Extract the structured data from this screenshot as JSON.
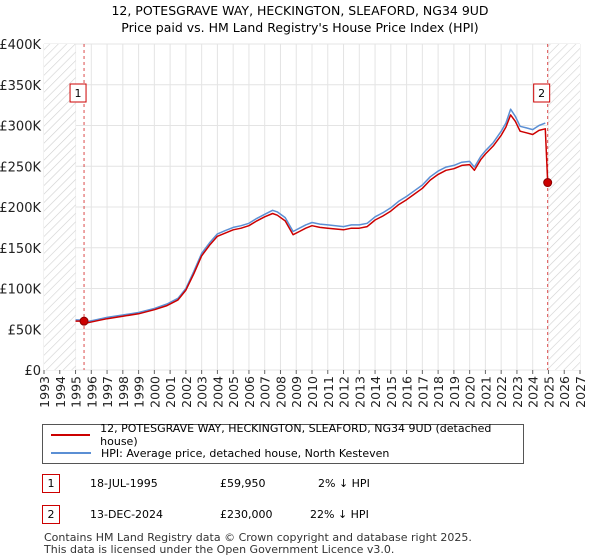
{
  "title": {
    "line1": "12, POTESGRAVE WAY, HECKINGTON, SLEAFORD, NG34 9UD",
    "line2": "Price paid vs. HM Land Registry's House Price Index (HPI)"
  },
  "chart_data": {
    "type": "line",
    "title": "12, POTESGRAVE WAY, HECKINGTON, SLEAFORD, NG34 9UD — Price paid vs. HM Land Registry's House Price Index (HPI)",
    "xlabel": "",
    "ylabel": "",
    "xlim": [
      1993,
      2027
    ],
    "ylim": [
      0,
      400000
    ],
    "x_ticks": [
      "1993",
      "1994",
      "1995",
      "1996",
      "1997",
      "1998",
      "1999",
      "2000",
      "2001",
      "2002",
      "2003",
      "2004",
      "2005",
      "2006",
      "2007",
      "2008",
      "2009",
      "2010",
      "2011",
      "2012",
      "2013",
      "2014",
      "2015",
      "2016",
      "2017",
      "2018",
      "2019",
      "2020",
      "2021",
      "2022",
      "2023",
      "2024",
      "2025",
      "2026",
      "2027"
    ],
    "y_ticks": [
      {
        "value": 0,
        "label": "£0"
      },
      {
        "value": 50000,
        "label": "£50K"
      },
      {
        "value": 100000,
        "label": "£100K"
      },
      {
        "value": 150000,
        "label": "£150K"
      },
      {
        "value": 200000,
        "label": "£200K"
      },
      {
        "value": 250000,
        "label": "£250K"
      },
      {
        "value": 300000,
        "label": "£300K"
      },
      {
        "value": 350000,
        "label": "£350K"
      },
      {
        "value": 400000,
        "label": "£400K"
      }
    ],
    "grid": true,
    "hatched_regions": [
      [
        1993,
        1995.0
      ],
      [
        2025.0,
        2027
      ]
    ],
    "series": [
      {
        "name": "12, POTESGRAVE WAY, HECKINGTON, SLEAFORD, NG34 9UD (detached house)",
        "color": "#cc0000",
        "x": [
          1995.0,
          1995.54,
          1995.8,
          1996.5,
          1997.0,
          1998.0,
          1999.0,
          2000.0,
          2000.8,
          2001.5,
          2002.0,
          2002.5,
          2003.0,
          2003.5,
          2004.0,
          2004.5,
          2005.0,
          2005.5,
          2006.0,
          2006.5,
          2007.0,
          2007.5,
          2007.8,
          2008.3,
          2008.8,
          2009.2,
          2009.6,
          2010.0,
          2010.5,
          2011.0,
          2011.5,
          2012.0,
          2012.5,
          2013.0,
          2013.5,
          2014.0,
          2014.5,
          2015.0,
          2015.5,
          2016.0,
          2016.5,
          2017.0,
          2017.5,
          2018.0,
          2018.5,
          2019.0,
          2019.5,
          2020.0,
          2020.3,
          2020.7,
          2021.0,
          2021.5,
          2022.0,
          2022.3,
          2022.6,
          2022.9,
          2023.2,
          2023.6,
          2024.0,
          2024.4,
          2024.8,
          2024.95
        ],
        "y": [
          60000,
          59950,
          58000,
          61000,
          63000,
          66000,
          69000,
          74000,
          79000,
          86000,
          98000,
          118000,
          140000,
          153000,
          164000,
          168000,
          172000,
          174000,
          177000,
          183000,
          188000,
          192000,
          190000,
          183000,
          166000,
          170000,
          174000,
          177000,
          175000,
          174000,
          173000,
          172000,
          174000,
          174000,
          176000,
          184000,
          189000,
          195000,
          203000,
          209000,
          216000,
          223000,
          233000,
          240000,
          245000,
          247000,
          251000,
          252000,
          245000,
          258000,
          265000,
          275000,
          288000,
          298000,
          313000,
          305000,
          293000,
          291000,
          289000,
          294000,
          296000,
          230000
        ]
      },
      {
        "name": "HPI: Average price, detached house, North Kesteven",
        "color": "#5b8fd4",
        "x": [
          1995.0,
          1995.54,
          1995.8,
          1996.5,
          1997.0,
          1998.0,
          1999.0,
          2000.0,
          2000.8,
          2001.5,
          2002.0,
          2002.5,
          2003.0,
          2003.5,
          2004.0,
          2004.5,
          2005.0,
          2005.5,
          2006.0,
          2006.5,
          2007.0,
          2007.5,
          2007.8,
          2008.3,
          2008.8,
          2009.2,
          2009.6,
          2010.0,
          2010.5,
          2011.0,
          2011.5,
          2012.0,
          2012.5,
          2013.0,
          2013.5,
          2014.0,
          2014.5,
          2015.0,
          2015.5,
          2016.0,
          2016.5,
          2017.0,
          2017.5,
          2018.0,
          2018.5,
          2019.0,
          2019.5,
          2020.0,
          2020.3,
          2020.7,
          2021.0,
          2021.5,
          2022.0,
          2022.3,
          2022.6,
          2022.9,
          2023.2,
          2023.6,
          2024.0,
          2024.4,
          2024.8
        ],
        "y": [
          61500,
          61200,
          59500,
          62500,
          64500,
          67500,
          70500,
          75500,
          81000,
          88000,
          100000,
          121000,
          143000,
          156000,
          167000,
          171000,
          175000,
          177000,
          180000,
          186000,
          191000,
          196000,
          194000,
          187000,
          170000,
          174000,
          178000,
          181000,
          179000,
          178000,
          177000,
          176000,
          178000,
          178000,
          180000,
          188000,
          193000,
          199000,
          207000,
          213000,
          220000,
          227000,
          237000,
          244000,
          249000,
          251000,
          255000,
          256000,
          249000,
          262000,
          269000,
          279000,
          293000,
          303000,
          320000,
          311000,
          299000,
          297000,
          295000,
          300000,
          303000
        ]
      }
    ],
    "sales": [
      {
        "id": "1",
        "x": 1995.54,
        "y": 59950
      },
      {
        "id": "2",
        "x": 2024.95,
        "y": 230000
      }
    ]
  },
  "legend": {
    "property_label": "12, POTESGRAVE WAY, HECKINGTON, SLEAFORD, NG34 9UD (detached house)",
    "hpi_label": "HPI: Average price, detached house, North Kesteven"
  },
  "transactions": [
    {
      "id": "1",
      "date": "18-JUL-1995",
      "price": "£59,950",
      "hpi": "2% ↓ HPI"
    },
    {
      "id": "2",
      "date": "13-DEC-2024",
      "price": "£230,000",
      "hpi": "22% ↓ HPI"
    }
  ],
  "footer": {
    "line1": "Contains HM Land Registry data © Crown copyright and database right 2025.",
    "line2": "This data is licensed under the Open Government Licence v3.0."
  }
}
